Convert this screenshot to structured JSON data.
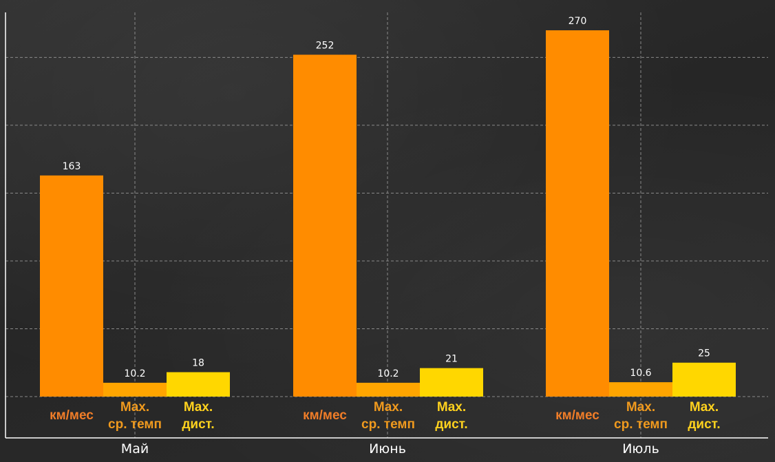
{
  "chart_data": {
    "type": "bar",
    "categories": [
      "Май",
      "Июнь",
      "Июль"
    ],
    "series": [
      {
        "name": "км/мес",
        "values": [
          163,
          252,
          270
        ]
      },
      {
        "name": "Max. ср. темп",
        "values": [
          10.2,
          10.2,
          10.6
        ]
      },
      {
        "name": "Max. дист.",
        "values": [
          18,
          21,
          25
        ]
      }
    ],
    "value_labels": [
      [
        "163",
        "10.2",
        "18"
      ],
      [
        "252",
        "10.2",
        "21"
      ],
      [
        "270",
        "10.6",
        "25"
      ]
    ],
    "bar_labels": [
      [
        "км/мес"
      ],
      [
        "Max.",
        "ср. темп"
      ],
      [
        "Max.",
        "дист."
      ]
    ],
    "ylim": [
      0,
      280
    ],
    "gridlines": true,
    "colors": {
      "series": [
        "#ff8c00",
        "#ffa500",
        "#ffd700"
      ],
      "bar_labels": [
        "#f07d28",
        "#f09a1e",
        "#ffd21e"
      ],
      "grid": "#8a8a8a",
      "axis": "#ffffff",
      "text": "#ffffff"
    }
  }
}
